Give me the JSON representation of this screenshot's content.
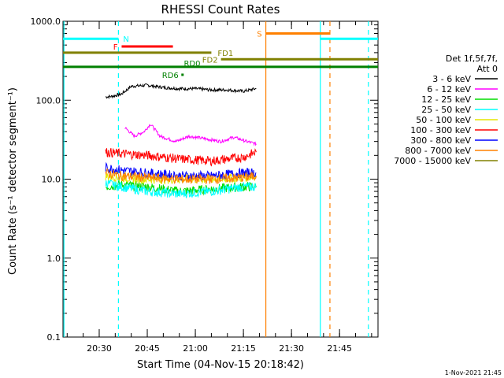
{
  "chart_data": {
    "type": "line",
    "title": "RHESSI Count Rates",
    "xlabel": "Start Time (04-Nov-15 20:18:42)",
    "ylabel": "Count Rate (s⁻¹ detector segment⁻¹)",
    "y_scale": "log",
    "ylim": [
      0.1,
      1000
    ],
    "xlim": [
      "20:18:42",
      "21:57:00"
    ],
    "x_ticks": [
      "20:30",
      "20:45",
      "21:00",
      "21:15",
      "21:30",
      "21:45"
    ],
    "y_ticks": [
      "0.1",
      "1.0",
      "10.0",
      "100.0",
      "1000.0"
    ],
    "legend": {
      "header": [
        "Det 1f,5f,7f,",
        "Att 0"
      ],
      "placement": "right",
      "entries": [
        {
          "label": "3 - 6 keV",
          "color": "#000000"
        },
        {
          "label": "6 - 12 keV",
          "color": "#ff00ff"
        },
        {
          "label": "12 - 25 keV",
          "color": "#00dd00"
        },
        {
          "label": "25 - 50 keV",
          "color": "#00ffff"
        },
        {
          "label": "50 - 100 keV",
          "color": "#e6e600"
        },
        {
          "label": "100 - 300 keV",
          "color": "#ff0000"
        },
        {
          "label": "300 - 800 keV",
          "color": "#0000ff"
        },
        {
          "label": "800 - 7000 keV",
          "color": "#ff8000"
        },
        {
          "label": "7000 - 15000 keV",
          "color": "#808000"
        }
      ]
    },
    "series": [
      {
        "name": "3 - 6 keV",
        "color": "#000000",
        "x": [
          "20:32",
          "20:34",
          "20:37",
          "20:40",
          "20:45",
          "20:50",
          "20:55",
          "21:00",
          "21:05",
          "21:10",
          "21:15",
          "21:19"
        ],
        "y": [
          110,
          112,
          120,
          150,
          155,
          145,
          140,
          140,
          135,
          135,
          130,
          140
        ]
      },
      {
        "name": "6 - 12 keV",
        "color": "#ff00ff",
        "x": [
          "20:38",
          "20:41",
          "20:44",
          "20:46",
          "20:49",
          "20:54",
          "20:58",
          "21:04",
          "21:08",
          "21:12",
          "21:16",
          "21:19"
        ],
        "y": [
          45,
          35,
          40,
          50,
          35,
          30,
          35,
          32,
          30,
          34,
          30,
          28
        ]
      },
      {
        "name": "12 - 25 keV",
        "color": "#00dd00",
        "x": [
          "20:32",
          "20:37",
          "20:45",
          "20:55",
          "21:05",
          "21:15",
          "21:19"
        ],
        "y": [
          8,
          8.5,
          8,
          7,
          7.5,
          8,
          8
        ]
      },
      {
        "name": "25 - 50 keV",
        "color": "#00ffff",
        "x": [
          "20:32",
          "20:37",
          "20:45",
          "20:55",
          "21:05",
          "21:15",
          "21:19"
        ],
        "y": [
          9,
          8,
          7,
          6.5,
          7,
          8,
          8
        ]
      },
      {
        "name": "50 - 100 keV",
        "color": "#e6e600",
        "x": [
          "20:32",
          "20:37",
          "20:45",
          "20:55",
          "21:05",
          "21:15",
          "21:19"
        ],
        "y": [
          11,
          10.5,
          10,
          10,
          10,
          10.5,
          11
        ]
      },
      {
        "name": "100 - 300 keV",
        "color": "#ff0000",
        "x": [
          "20:32",
          "20:37",
          "20:45",
          "20:55",
          "21:05",
          "21:15",
          "21:19"
        ],
        "y": [
          22,
          21,
          20,
          18,
          17,
          19,
          22
        ]
      },
      {
        "name": "300 - 800 keV",
        "color": "#0000ff",
        "x": [
          "20:32",
          "20:37",
          "20:45",
          "20:55",
          "21:05",
          "21:15",
          "21:19"
        ],
        "y": [
          14,
          13,
          12,
          11,
          11,
          12,
          12
        ]
      },
      {
        "name": "800 - 7000 keV",
        "color": "#ff8000",
        "x": [
          "20:32",
          "20:37",
          "20:45",
          "20:55",
          "21:05",
          "21:15",
          "21:19"
        ],
        "y": [
          12,
          11,
          10.5,
          10,
          10,
          10.5,
          11
        ]
      }
    ],
    "annotations": [
      {
        "label": "N",
        "color": "#00ffff",
        "x": [
          "20:18:42",
          "20:36:00"
        ],
        "y": 600
      },
      {
        "label": "",
        "color": "#00ffff",
        "x": [
          "21:39:00",
          "21:57:00"
        ],
        "y": 600
      },
      {
        "label": "F",
        "color": "#ff0000",
        "x": [
          "20:37:00",
          "20:53:00"
        ],
        "y": 480
      },
      {
        "label": "S",
        "color": "#ff8000",
        "x": [
          "21:22:00",
          "21:42:00"
        ],
        "y": 700
      },
      {
        "label": "FD1",
        "color": "#808000",
        "x": [
          "20:18:42",
          "21:05:00"
        ],
        "y": 400
      },
      {
        "label": "FD2",
        "color": "#808000",
        "x": [
          "21:08:00",
          "21:57:00"
        ],
        "y": 330
      },
      {
        "label": "RD0",
        "color": "#008000",
        "x": [
          "20:18:42",
          "21:57:00"
        ],
        "y": 265
      },
      {
        "label": "RD6",
        "color": "#008000",
        "x": [
          "20:56:00",
          "20:56:00"
        ],
        "y": 210
      }
    ],
    "vertical_markers": [
      {
        "x": "20:19:00",
        "color": "#00ffff",
        "style": "solid"
      },
      {
        "x": "20:36:00",
        "color": "#00ffff",
        "style": "dashed"
      },
      {
        "x": "21:22:00",
        "color": "#ff8000",
        "style": "solid"
      },
      {
        "x": "21:39:00",
        "color": "#00ffff",
        "style": "solid"
      },
      {
        "x": "21:42:00",
        "color": "#ff8000",
        "style": "dashed"
      },
      {
        "x": "21:54:00",
        "color": "#00ffff",
        "style": "dashed"
      }
    ]
  },
  "footer": {
    "timestamp": "1-Nov-2021 21:45"
  }
}
